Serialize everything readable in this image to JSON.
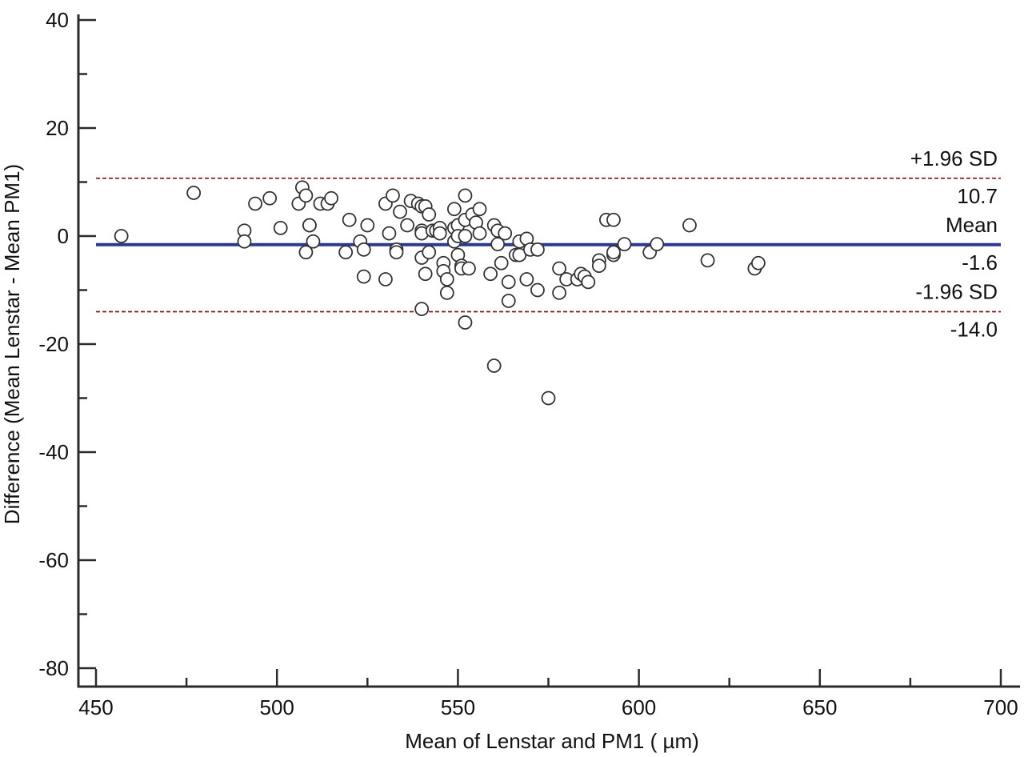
{
  "chart_data": {
    "type": "scatter",
    "title": "",
    "xlabel": "Mean of Lenstar and PM1 ( µm)",
    "ylabel": "Difference (Mean Lenstar - Mean PM1)",
    "xlim": [
      450,
      700
    ],
    "ylim": [
      -80,
      40
    ],
    "x_ticks": [
      450,
      500,
      550,
      600,
      650,
      700
    ],
    "y_ticks": [
      40,
      20,
      0,
      -20,
      -40,
      -60,
      -80
    ],
    "grid": false,
    "legend": "none",
    "reference_lines": [
      {
        "name": "upper-loa",
        "label": "+1.96 SD",
        "value_label": "10.7",
        "y": 10.7,
        "style": "dashed",
        "color": "#8b1a1a"
      },
      {
        "name": "mean",
        "label": "Mean",
        "value_label": "-1.6",
        "y": -1.6,
        "style": "solid",
        "color": "#2b3990"
      },
      {
        "name": "lower-loa",
        "label": "-1.96 SD",
        "value_label": "-14.0",
        "y": -14.0,
        "style": "dashed",
        "color": "#8b1a1a"
      }
    ],
    "marker_color": "#333333",
    "points": [
      [
        457,
        0
      ],
      [
        477,
        8
      ],
      [
        491,
        1
      ],
      [
        491,
        -1
      ],
      [
        494,
        6
      ],
      [
        498,
        7
      ],
      [
        501,
        1.5
      ],
      [
        506,
        6
      ],
      [
        507,
        9
      ],
      [
        508,
        -3
      ],
      [
        508,
        7.5
      ],
      [
        509,
        2
      ],
      [
        509,
        2
      ],
      [
        510,
        -1
      ],
      [
        512,
        6
      ],
      [
        514,
        6
      ],
      [
        515,
        7
      ],
      [
        519,
        -3
      ],
      [
        520,
        3
      ],
      [
        523,
        -1
      ],
      [
        524,
        -7.5
      ],
      [
        524,
        -2.5
      ],
      [
        525,
        2
      ],
      [
        530,
        6
      ],
      [
        530,
        -8
      ],
      [
        531,
        0.5
      ],
      [
        532,
        7.5
      ],
      [
        533,
        -2.5
      ],
      [
        533,
        -3
      ],
      [
        534,
        4.5
      ],
      [
        536,
        2
      ],
      [
        537,
        6.5
      ],
      [
        539,
        6
      ],
      [
        540,
        5.5
      ],
      [
        540,
        1
      ],
      [
        540,
        0.5
      ],
      [
        540,
        -13.5
      ],
      [
        540,
        -4
      ],
      [
        541,
        5.5
      ],
      [
        541,
        -7
      ],
      [
        542,
        4
      ],
      [
        542,
        -3
      ],
      [
        543,
        1
      ],
      [
        544,
        1
      ],
      [
        545,
        1.5
      ],
      [
        545,
        0.5
      ],
      [
        546,
        -5
      ],
      [
        546,
        -6.5
      ],
      [
        547,
        -8
      ],
      [
        547,
        -10.5
      ],
      [
        549,
        5
      ],
      [
        549,
        1.5
      ],
      [
        549,
        -1
      ],
      [
        550,
        2
      ],
      [
        550,
        0
      ],
      [
        550,
        -3.5
      ],
      [
        551,
        -5.5
      ],
      [
        551,
        -6
      ],
      [
        552,
        7.5
      ],
      [
        552,
        3
      ],
      [
        552,
        0
      ],
      [
        552,
        -16
      ],
      [
        553,
        -6
      ],
      [
        554,
        4
      ],
      [
        555,
        2.5
      ],
      [
        556,
        5
      ],
      [
        556,
        0.5
      ],
      [
        559,
        -7
      ],
      [
        560,
        -24
      ],
      [
        560,
        2
      ],
      [
        561,
        1
      ],
      [
        561,
        -1.5
      ],
      [
        562,
        -5
      ],
      [
        563,
        0.5
      ],
      [
        564,
        -8.5
      ],
      [
        564,
        -12
      ],
      [
        566,
        -3.5
      ],
      [
        567,
        -1
      ],
      [
        567,
        -3.5
      ],
      [
        569,
        -0.5
      ],
      [
        569,
        -8
      ],
      [
        570,
        -2.5
      ],
      [
        572,
        -2.5
      ],
      [
        572,
        -10
      ],
      [
        575,
        -30
      ],
      [
        578,
        -6
      ],
      [
        578,
        -10.5
      ],
      [
        580,
        -8
      ],
      [
        583,
        -8
      ],
      [
        584,
        -7
      ],
      [
        585,
        -7.5
      ],
      [
        586,
        -8.5
      ],
      [
        589,
        -4.5
      ],
      [
        589,
        -5.5
      ],
      [
        591,
        3
      ],
      [
        593,
        3
      ],
      [
        593,
        -3.5
      ],
      [
        593,
        -3
      ],
      [
        596,
        -1.5
      ],
      [
        603,
        -3
      ],
      [
        605,
        -1.5
      ],
      [
        614,
        2
      ],
      [
        619,
        -4.5
      ],
      [
        632,
        -6
      ],
      [
        633,
        -5
      ]
    ]
  }
}
